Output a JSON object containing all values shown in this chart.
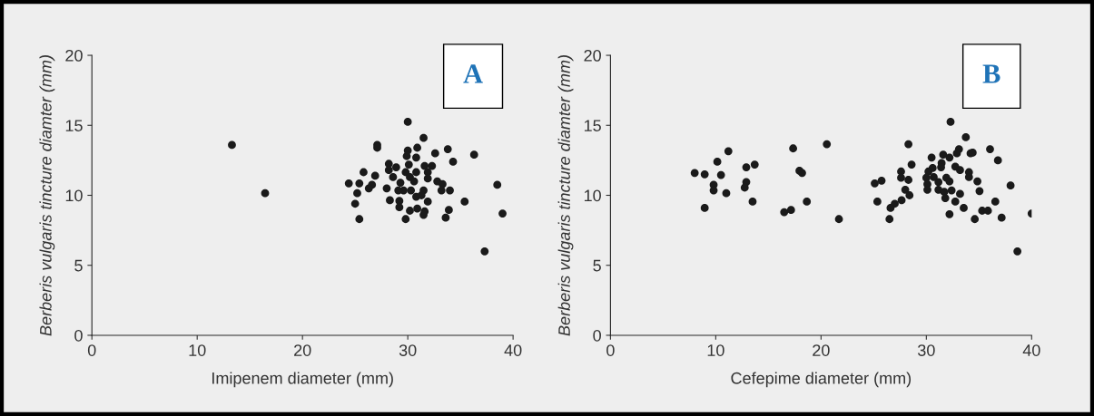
{
  "chart_data": [
    {
      "type": "scatter",
      "xlabel": "Imipenem diameter (mm)",
      "ylabel": "Berberis vulgaris tincture diamter (mm)",
      "annotations": [
        "A"
      ],
      "xlim": [
        0,
        40
      ],
      "ylim": [
        0,
        20
      ],
      "xticks": [
        0,
        10,
        20,
        30,
        40
      ],
      "yticks": [
        0,
        5,
        10,
        15,
        20
      ],
      "grid": false,
      "marker": "circle",
      "series": [
        {
          "color": "#1a1a1a",
          "x": [
            13.3,
            16.45,
            30.0,
            31.5,
            27.1,
            27.1,
            33.8,
            36.3,
            32.6,
            30.9,
            30.0,
            29.9,
            30.8,
            34.3,
            28.2,
            30.1,
            31.6,
            32.3,
            28.9,
            28.2,
            25.8,
            26.9,
            30.8,
            29.8,
            31.9,
            28.6,
            30.2,
            31.9,
            24.4,
            25.4,
            26.6,
            26.3,
            28.0,
            29.3,
            30.6,
            32.8,
            33.3,
            29.6,
            30.3,
            29.1,
            31.5,
            33.2,
            34.0,
            38.5,
            25.2,
            30.8,
            31.3,
            28.3,
            29.2,
            31.9,
            35.4,
            25.0,
            29.2,
            30.2,
            30.9,
            31.6,
            33.9,
            39.0,
            31.5,
            33.6,
            25.4,
            29.8,
            37.3
          ],
          "values": [
            13.6,
            10.15,
            15.25,
            14.1,
            13.6,
            13.4,
            13.3,
            12.9,
            13.0,
            13.4,
            13.2,
            12.8,
            12.7,
            12.4,
            12.25,
            12.2,
            12.1,
            12.1,
            12.0,
            11.8,
            11.65,
            11.4,
            11.65,
            11.65,
            11.65,
            11.3,
            11.3,
            11.2,
            10.85,
            10.85,
            10.75,
            10.5,
            10.5,
            10.9,
            11.0,
            11.0,
            10.8,
            10.35,
            10.35,
            10.35,
            10.35,
            10.35,
            10.35,
            10.75,
            10.15,
            9.9,
            10.0,
            9.65,
            9.6,
            9.55,
            9.55,
            9.4,
            9.15,
            8.9,
            9.05,
            8.85,
            8.95,
            8.7,
            8.6,
            8.4,
            8.3,
            8.3,
            6.0
          ]
        }
      ]
    },
    {
      "type": "scatter",
      "xlabel": "Cefepime diameter (mm)",
      "ylabel": "Berberis vulgaris tincture diamter (mm)",
      "annotations": [
        "B"
      ],
      "xlim": [
        0,
        40
      ],
      "ylim": [
        0,
        20
      ],
      "xticks": [
        0,
        10,
        20,
        30,
        40
      ],
      "yticks": [
        0,
        5,
        10,
        15,
        20
      ],
      "grid": false,
      "marker": "circle",
      "series": [
        {
          "color": "#1a1a1a",
          "x": [
            11.2,
            10.15,
            8.0,
            8.95,
            10.5,
            12.9,
            13.7,
            9.8,
            9.8,
            11.0,
            12.9,
            12.75,
            8.95,
            13.5,
            17.35,
            20.55,
            17.95,
            18.2,
            18.65,
            16.5,
            17.15,
            21.7,
            32.3,
            33.75,
            28.3,
            36.05,
            33.1,
            32.9,
            36.8,
            34.2,
            34.4,
            31.6,
            32.2,
            30.5,
            28.6,
            31.45,
            31.4,
            32.75,
            33.2,
            30.6,
            30.2,
            27.6,
            34.05,
            34.05,
            30.0,
            30.7,
            27.6,
            28.3,
            31.9,
            32.2,
            34.85,
            25.1,
            25.75,
            31.15,
            30.1,
            38.0,
            30.1,
            31.15,
            31.7,
            32.4,
            35.05,
            28.0,
            28.4,
            33.2,
            31.8,
            25.35,
            27.65,
            27.0,
            26.6,
            32.75,
            33.55,
            36.55,
            35.3,
            35.85,
            40.0,
            32.2,
            34.6,
            37.15,
            26.5,
            38.65
          ],
          "values": [
            13.15,
            12.4,
            11.6,
            11.5,
            11.45,
            12.0,
            12.2,
            10.75,
            10.35,
            10.15,
            10.95,
            10.55,
            9.1,
            9.55,
            13.35,
            13.65,
            11.75,
            11.6,
            9.55,
            8.8,
            8.95,
            8.3,
            15.25,
            14.15,
            13.65,
            13.3,
            13.3,
            13.0,
            12.5,
            13.0,
            13.05,
            12.9,
            12.7,
            12.7,
            12.2,
            12.3,
            12.0,
            12.05,
            11.8,
            11.95,
            11.7,
            11.7,
            11.65,
            11.3,
            11.25,
            11.3,
            11.25,
            11.1,
            11.25,
            11.0,
            11.0,
            10.85,
            11.05,
            10.95,
            10.8,
            10.7,
            10.4,
            10.4,
            10.25,
            10.35,
            10.3,
            10.4,
            10.0,
            10.1,
            9.8,
            9.55,
            9.65,
            9.4,
            9.1,
            9.55,
            9.1,
            9.55,
            8.9,
            8.9,
            8.7,
            8.65,
            8.3,
            8.4,
            8.3,
            6.0
          ]
        }
      ]
    }
  ]
}
